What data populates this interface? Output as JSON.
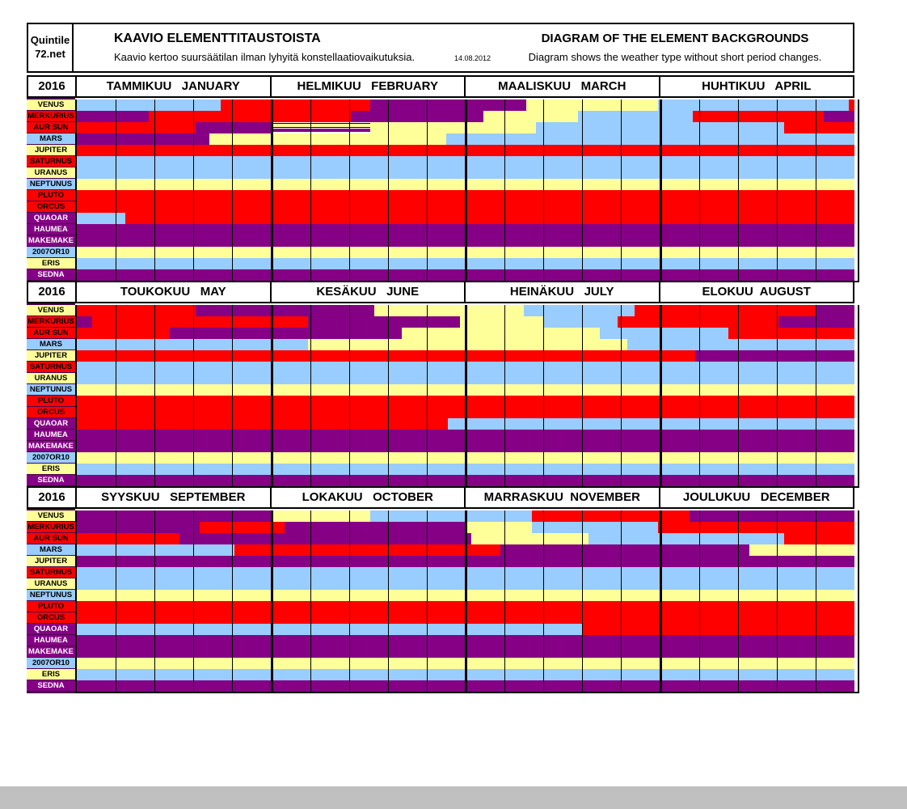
{
  "header": {
    "logo_line1": "Quintile",
    "logo_line2": "72.net",
    "title_fi": "KAAVIO ELEMENTTITAUSTOISTA",
    "subtitle_fi": "Kaavio kertoo suursäätilan ilman lyhyitä konstellaatiovaikutuksia.",
    "date": "14.08.2012",
    "title_en": "DIAGRAM OF THE ELEMENT BACKGROUNDS",
    "subtitle_en": "Diagram shows the weather type without short period changes."
  },
  "colors": {
    "R": "#FF0000",
    "P": "#850085",
    "B": "#99CCFF",
    "Y": "#FFFF99",
    "label_backdrop": "#4B004B",
    "grid": "#000000",
    "bottom_strip": "#C0C0C0"
  },
  "planets": [
    {
      "name": "VENUS",
      "bg": "Y",
      "fg": "dark"
    },
    {
      "name": "MERKURIUS",
      "bg": "R",
      "fg": "dark"
    },
    {
      "name": "AUR SUN",
      "bg": "R",
      "fg": "dark"
    },
    {
      "name": "MARS",
      "bg": "B",
      "fg": "dark"
    },
    {
      "name": "JUPITER",
      "bg": "Y",
      "fg": "dark"
    },
    {
      "name": "SATURNUS",
      "bg": "R",
      "fg": "dark"
    },
    {
      "name": "URANUS",
      "bg": "Y",
      "fg": "dark"
    },
    {
      "name": "NEPTUNUS",
      "bg": "B",
      "fg": "dark"
    },
    {
      "name": "PLUTO",
      "bg": "R",
      "fg": "dark"
    },
    {
      "name": "ORCUS",
      "bg": "R",
      "fg": "dark"
    },
    {
      "name": "QUAOAR",
      "bg": "P",
      "fg": "light"
    },
    {
      "name": "HAUMEA",
      "bg": "P",
      "fg": "light"
    },
    {
      "name": "MAKEMAKE",
      "bg": "P",
      "fg": "light"
    },
    {
      "name": "2007OR10",
      "bg": "B",
      "fg": "dark"
    },
    {
      "name": "ERIS",
      "bg": "Y",
      "fg": "dark"
    },
    {
      "name": "SEDNA",
      "bg": "P",
      "fg": "light"
    }
  ],
  "chart_data": {
    "type": "heatmap",
    "title": "KAAVIO ELEMENTTITAUSTOISTA / DIAGRAM OF THE ELEMENT BACKGROUNDS",
    "year": "2016",
    "x_unit": "months within each quarter-band (0-4), 5 week-columns per month",
    "legend": {
      "R": "red fire element",
      "P": "purple",
      "B": "light-blue",
      "Y": "pale-yellow",
      "S": "split yellow/purple stripe"
    },
    "sections": [
      {
        "year": "2016",
        "months": [
          "TAMMIKUU   JANUARY",
          "HELMIKUU   FEBRUARY",
          "MAALISKUU   MARCH",
          "HUHTIKUU   APRIL"
        ],
        "rows": {
          "VENUS": [
            [
              "B",
              0,
              0.74
            ],
            [
              "R",
              0.74,
              1.51
            ],
            [
              "P",
              1.51,
              2.31
            ],
            [
              "Y",
              2.31,
              2.99
            ],
            [
              "B",
              2.99,
              3.97
            ],
            [
              "R",
              3.97,
              4
            ]
          ],
          "MERKURIUS": [
            [
              "P",
              0,
              0.37
            ],
            [
              "R",
              0.37,
              1.41
            ],
            [
              "P",
              1.41,
              2.09
            ],
            [
              "Y",
              2.09,
              2.58
            ],
            [
              "B",
              2.58,
              3.17
            ],
            [
              "R",
              3.17,
              3.84
            ],
            [
              "P",
              3.84,
              4
            ]
          ],
          "AUR SUN": [
            [
              "R",
              0,
              0.61
            ],
            [
              "P",
              0.61,
              1
            ],
            [
              "S",
              1,
              1.51
            ],
            [
              "Y",
              1.51,
              2.36
            ],
            [
              "B",
              2.36,
              3.64
            ],
            [
              "R",
              3.64,
              4
            ]
          ],
          "MARS": [
            [
              "P",
              0,
              0.68
            ],
            [
              "Y",
              0.68,
              1.9
            ],
            [
              "B",
              1.9,
              4
            ]
          ],
          "JUPITER": [
            [
              "R",
              0,
              4
            ]
          ],
          "SATURNUS": [
            [
              "B",
              0,
              4
            ]
          ],
          "URANUS": [
            [
              "B",
              0,
              4
            ]
          ],
          "NEPTUNUS": [
            [
              "Y",
              0,
              4
            ]
          ],
          "PLUTO": [
            [
              "R",
              0,
              4
            ]
          ],
          "ORCUS": [
            [
              "R",
              0,
              4
            ]
          ],
          "QUAOAR": [
            [
              "B",
              0,
              0.25
            ],
            [
              "R",
              0.25,
              4
            ]
          ],
          "HAUMEA": [
            [
              "P",
              0,
              4
            ]
          ],
          "MAKEMAKE": [
            [
              "P",
              0,
              4
            ]
          ],
          "2007OR10": [
            [
              "Y",
              0,
              4
            ]
          ],
          "ERIS": [
            [
              "B",
              0,
              4
            ]
          ],
          "SEDNA": [
            [
              "P",
              0,
              4
            ]
          ]
        }
      },
      {
        "year": "2016",
        "months": [
          "TOUKOKUU   MAY",
          "KESÄKUU   JUNE",
          "HEINÄKUU   JULY",
          "ELOKUU  AUGUST"
        ],
        "rows": {
          "VENUS": [
            [
              "R",
              0,
              0.61
            ],
            [
              "P",
              0.61,
              1.53
            ],
            [
              "Y",
              1.53,
              2.3
            ],
            [
              "B",
              2.3,
              2.87
            ],
            [
              "R",
              2.87,
              3.8
            ],
            [
              "P",
              3.8,
              4
            ]
          ],
          "MERKURIUS": [
            [
              "P",
              0,
              0.08
            ],
            [
              "R",
              0.08,
              1.19
            ],
            [
              "P",
              1.19,
              1.97
            ],
            [
              "Y",
              1.97,
              2.4
            ],
            [
              "B",
              2.4,
              2.78
            ],
            [
              "R",
              2.78,
              3.61
            ],
            [
              "P",
              3.61,
              4
            ]
          ],
          "AUR SUN": [
            [
              "R",
              0,
              0.48
            ],
            [
              "P",
              0.48,
              1.67
            ],
            [
              "Y",
              1.67,
              2.69
            ],
            [
              "B",
              2.69,
              3.35
            ],
            [
              "R",
              3.35,
              4
            ]
          ],
          "MARS": [
            [
              "B",
              0,
              1.19
            ],
            [
              "Y",
              1.19,
              2.83
            ],
            [
              "B",
              2.83,
              4
            ]
          ],
          "JUPITER": [
            [
              "R",
              0,
              3.18
            ],
            [
              "P",
              3.18,
              4
            ]
          ],
          "SATURNUS": [
            [
              "B",
              0,
              4
            ]
          ],
          "URANUS": [
            [
              "B",
              0,
              4
            ]
          ],
          "NEPTUNUS": [
            [
              "Y",
              0,
              4
            ]
          ],
          "PLUTO": [
            [
              "R",
              0,
              4
            ]
          ],
          "ORCUS": [
            [
              "R",
              0,
              4
            ]
          ],
          "QUAOAR": [
            [
              "R",
              0,
              1.91
            ],
            [
              "B",
              1.91,
              4
            ]
          ],
          "HAUMEA": [
            [
              "P",
              0,
              4
            ]
          ],
          "MAKEMAKE": [
            [
              "P",
              0,
              4
            ]
          ],
          "2007OR10": [
            [
              "Y",
              0,
              4
            ]
          ],
          "ERIS": [
            [
              "B",
              0,
              4
            ]
          ],
          "SEDNA": [
            [
              "P",
              0,
              4
            ]
          ]
        }
      },
      {
        "year": "2016",
        "months": [
          "SYYSKUU   SEPTEMBER",
          "LOKAKUU   OCTOBER",
          "MARRASKUU  NOVEMBER",
          "JOULUKUU   DECEMBER"
        ],
        "rows": {
          "VENUS": [
            [
              "P",
              0,
              1
            ],
            [
              "Y",
              1,
              1.51
            ],
            [
              "B",
              1.51,
              2.34
            ],
            [
              "R",
              2.34,
              3.15
            ],
            [
              "P",
              3.15,
              4
            ]
          ],
          "MERKURIUS": [
            [
              "P",
              0,
              0.63
            ],
            [
              "R",
              0.63,
              1.07
            ],
            [
              "P",
              1.07,
              2
            ],
            [
              "Y",
              2,
              2.34
            ],
            [
              "B",
              2.34,
              2.99
            ],
            [
              "R",
              2.99,
              4
            ]
          ],
          "AUR SUN": [
            [
              "R",
              0,
              0.53
            ],
            [
              "P",
              0.53,
              2.03
            ],
            [
              "Y",
              2.03,
              2.63
            ],
            [
              "B",
              2.63,
              3.64
            ],
            [
              "R",
              3.64,
              4
            ]
          ],
          "MARS": [
            [
              "B",
              0,
              0.81
            ],
            [
              "R",
              0.81,
              2.18
            ],
            [
              "P",
              2.18,
              3.46
            ],
            [
              "Y",
              3.46,
              4
            ]
          ],
          "JUPITER": [
            [
              "P",
              0,
              4
            ]
          ],
          "SATURNUS": [
            [
              "B",
              0,
              4
            ]
          ],
          "URANUS": [
            [
              "B",
              0,
              4
            ]
          ],
          "NEPTUNUS": [
            [
              "Y",
              0,
              4
            ]
          ],
          "PLUTO": [
            [
              "R",
              0,
              4
            ]
          ],
          "ORCUS": [
            [
              "R",
              0,
              4
            ]
          ],
          "QUAOAR": [
            [
              "B",
              0,
              2.6
            ],
            [
              "R",
              2.6,
              4
            ]
          ],
          "HAUMEA": [
            [
              "P",
              0,
              4
            ]
          ],
          "MAKEMAKE": [
            [
              "P",
              0,
              4
            ]
          ],
          "2007OR10": [
            [
              "Y",
              0,
              4
            ]
          ],
          "ERIS": [
            [
              "B",
              0,
              4
            ]
          ],
          "SEDNA": [
            [
              "P",
              0,
              4
            ]
          ]
        }
      }
    ]
  }
}
